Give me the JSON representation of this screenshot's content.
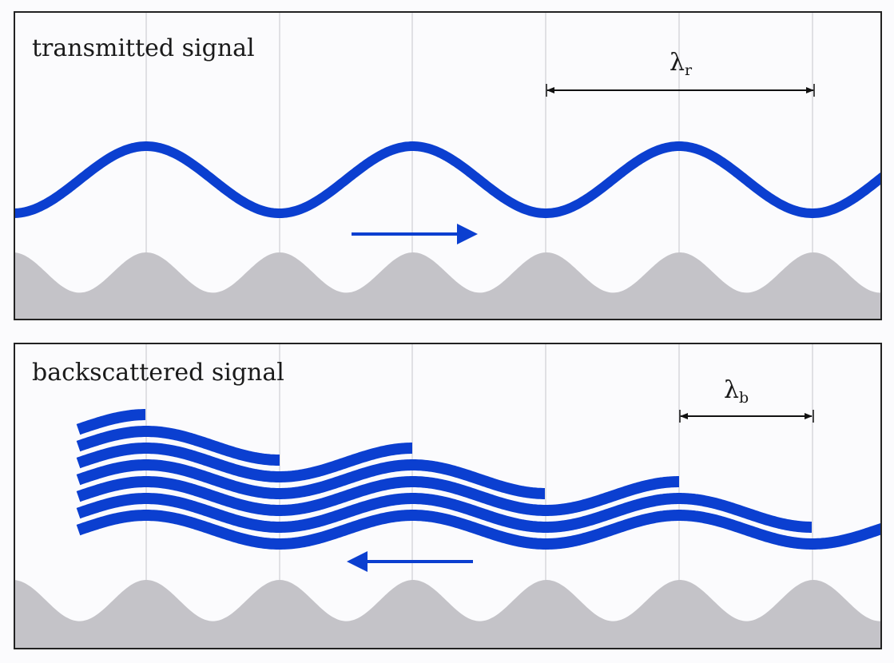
{
  "panels": [
    {
      "label": "transmitted signal",
      "wavelength_symbol": "λ",
      "wavelength_subscript": "r",
      "arrow_direction": "right"
    },
    {
      "label": "backscattered signal",
      "wavelength_symbol": "λ",
      "wavelength_subscript": "b",
      "arrow_direction": "left",
      "reflected_wave_count": 7
    }
  ],
  "colors": {
    "wave": "#0b3fd0",
    "ground": "#c4c3c8",
    "grid": "#cfcfd4",
    "frame": "#222222"
  }
}
